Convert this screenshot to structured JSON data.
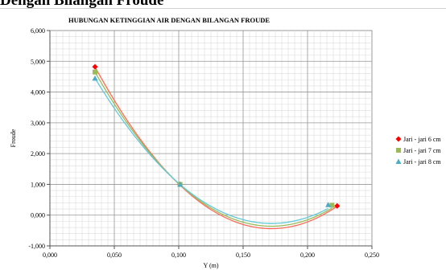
{
  "page_heading": "Dengan Bilangan Froude",
  "chart_data": {
    "type": "scatter",
    "title": "HUBUNGAN KETINGGIAN AIR DENGAN BILANGAN FROUDE",
    "xlabel": "Y (m)",
    "ylabel": "Froude",
    "xlim": [
      0,
      0.25
    ],
    "ylim": [
      -1,
      6
    ],
    "x_ticks": [
      "0,000",
      "0,050",
      "0,100",
      "0,150",
      "0,200",
      "0,250"
    ],
    "y_ticks": [
      "-1,000",
      "0,000",
      "1,000",
      "2,000",
      "3,000",
      "4,000",
      "5,000",
      "6,000"
    ],
    "grid": true,
    "legend_position": "right",
    "trendline": "polynomial",
    "series": [
      {
        "name": "Jari - jari 6 cm",
        "color": "#ff0000",
        "line_color": "#ff6a5a",
        "marker": "diamond",
        "points": [
          [
            0.035,
            4.82
          ],
          [
            0.101,
            1.0
          ],
          [
            0.223,
            0.3
          ]
        ],
        "curve_min": [
          0.172,
          -0.44
        ]
      },
      {
        "name": "Jari - jari 7 cm",
        "color": "#9bbb59",
        "line_color": "#9bbb59",
        "marker": "square",
        "points": [
          [
            0.035,
            4.65
          ],
          [
            0.101,
            1.0
          ],
          [
            0.219,
            0.32
          ]
        ],
        "curve_min": [
          0.172,
          -0.36
        ]
      },
      {
        "name": "Jari - jari 8 cm",
        "color": "#4bacc6",
        "line_color": "#5fc9d9",
        "marker": "triangle",
        "points": [
          [
            0.035,
            4.45
          ],
          [
            0.101,
            1.0
          ],
          [
            0.216,
            0.34
          ]
        ],
        "curve_min": [
          0.172,
          -0.27
        ]
      }
    ]
  }
}
